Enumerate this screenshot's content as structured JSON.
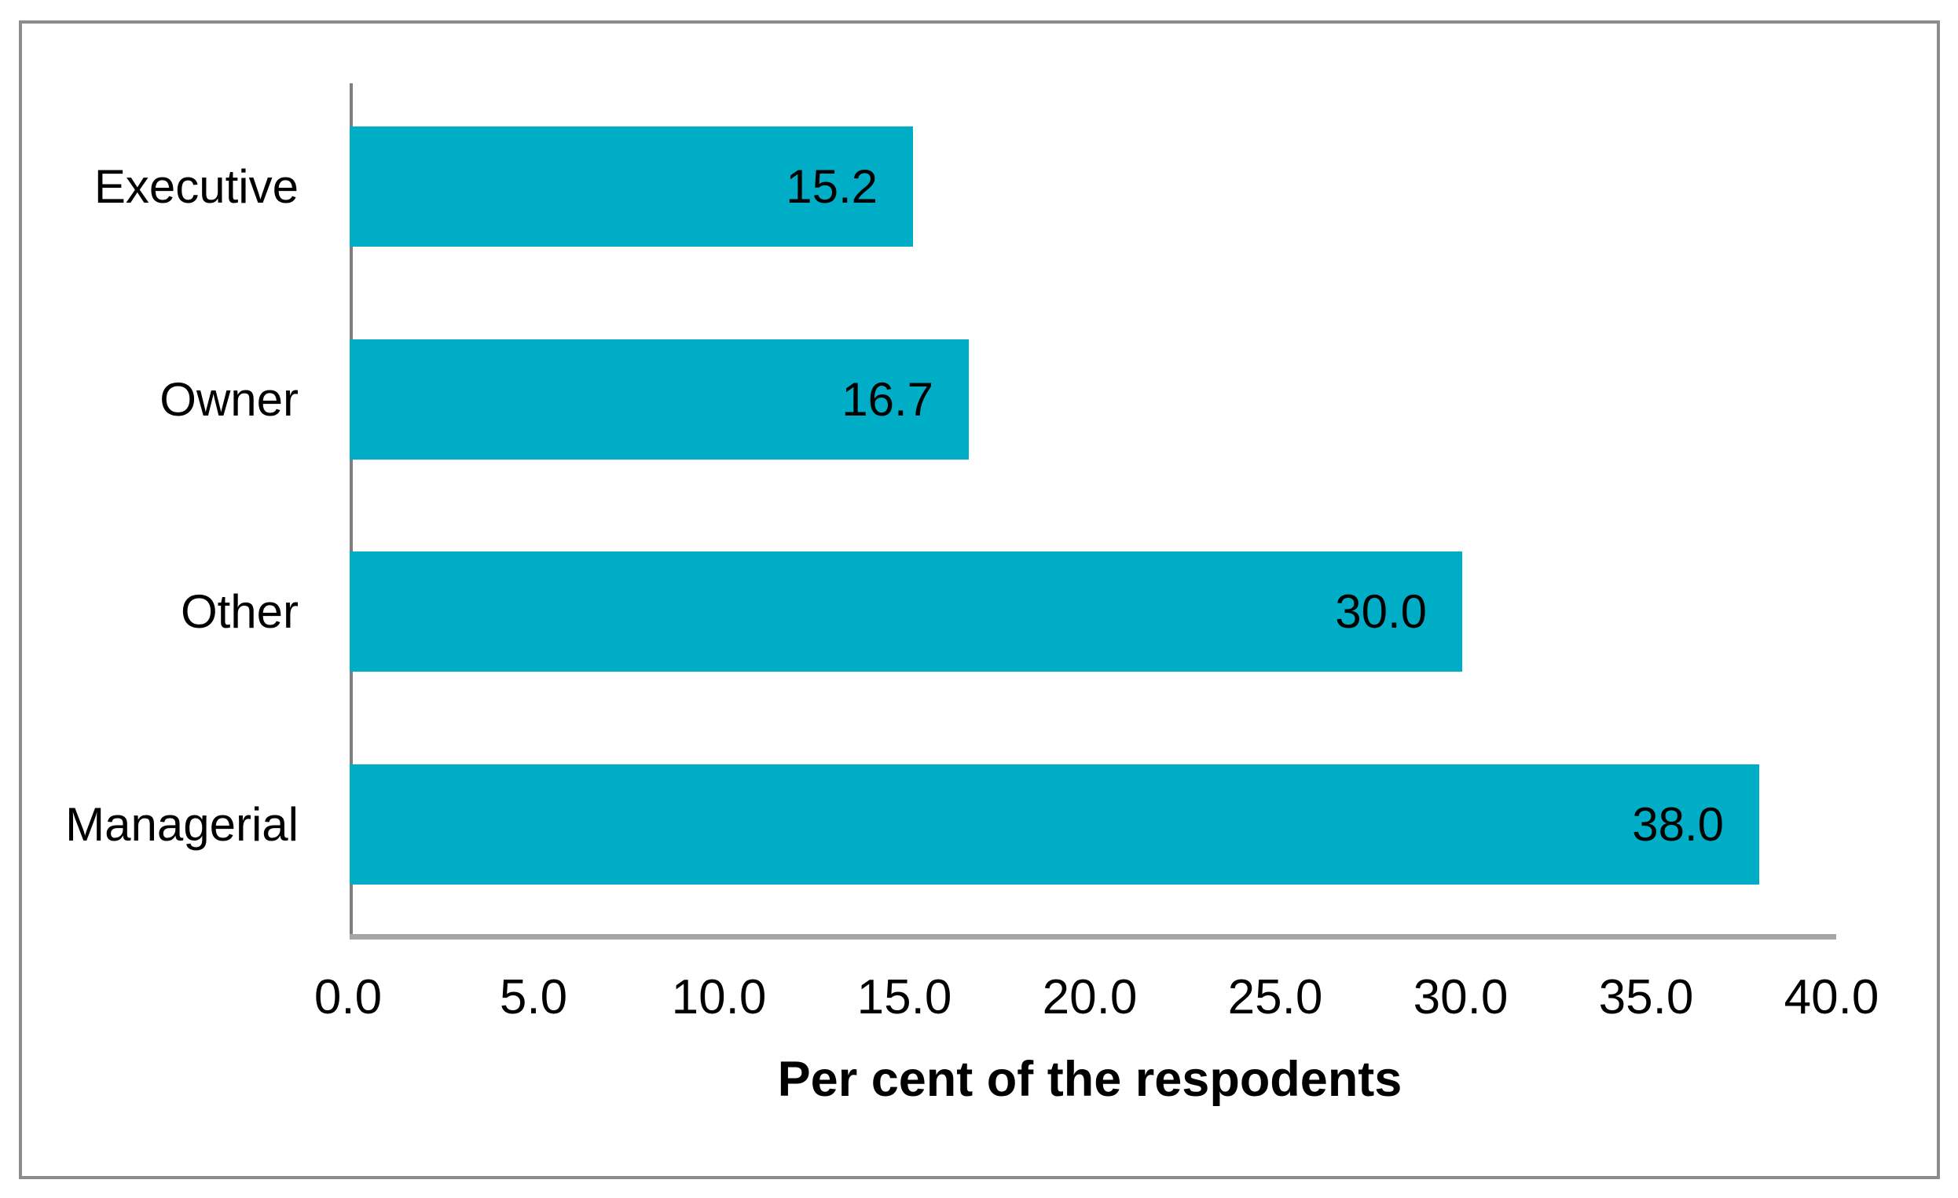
{
  "chart_data": {
    "type": "bar",
    "orientation": "horizontal",
    "categories": [
      "Executive",
      "Owner",
      "Other",
      "Managerial"
    ],
    "values": [
      15.2,
      16.7,
      30.0,
      38.0
    ],
    "value_labels": [
      "15.2",
      "16.7",
      "30.0",
      "38.0"
    ],
    "value_labels_position": "inside-end",
    "title": "",
    "xlabel": "Per cent of the respodents",
    "ylabel": "",
    "xlim": [
      0.0,
      40.0
    ],
    "xticks": [
      0.0,
      5.0,
      10.0,
      15.0,
      20.0,
      25.0,
      30.0,
      35.0,
      40.0
    ],
    "xtick_labels": [
      "0.0",
      "5.0",
      "10.0",
      "15.0",
      "20.0",
      "25.0",
      "30.0",
      "35.0",
      "40.0"
    ],
    "grid": false,
    "legend": "none",
    "bar_color": "#00ADC6"
  },
  "colors": {
    "bar": "#00ADC6",
    "y_axis_line": "#7F7F7F",
    "x_axis_line": "#A6A6A6",
    "frame_border": "#8C8C8C",
    "text": "#000000",
    "background": "#FFFFFF"
  }
}
